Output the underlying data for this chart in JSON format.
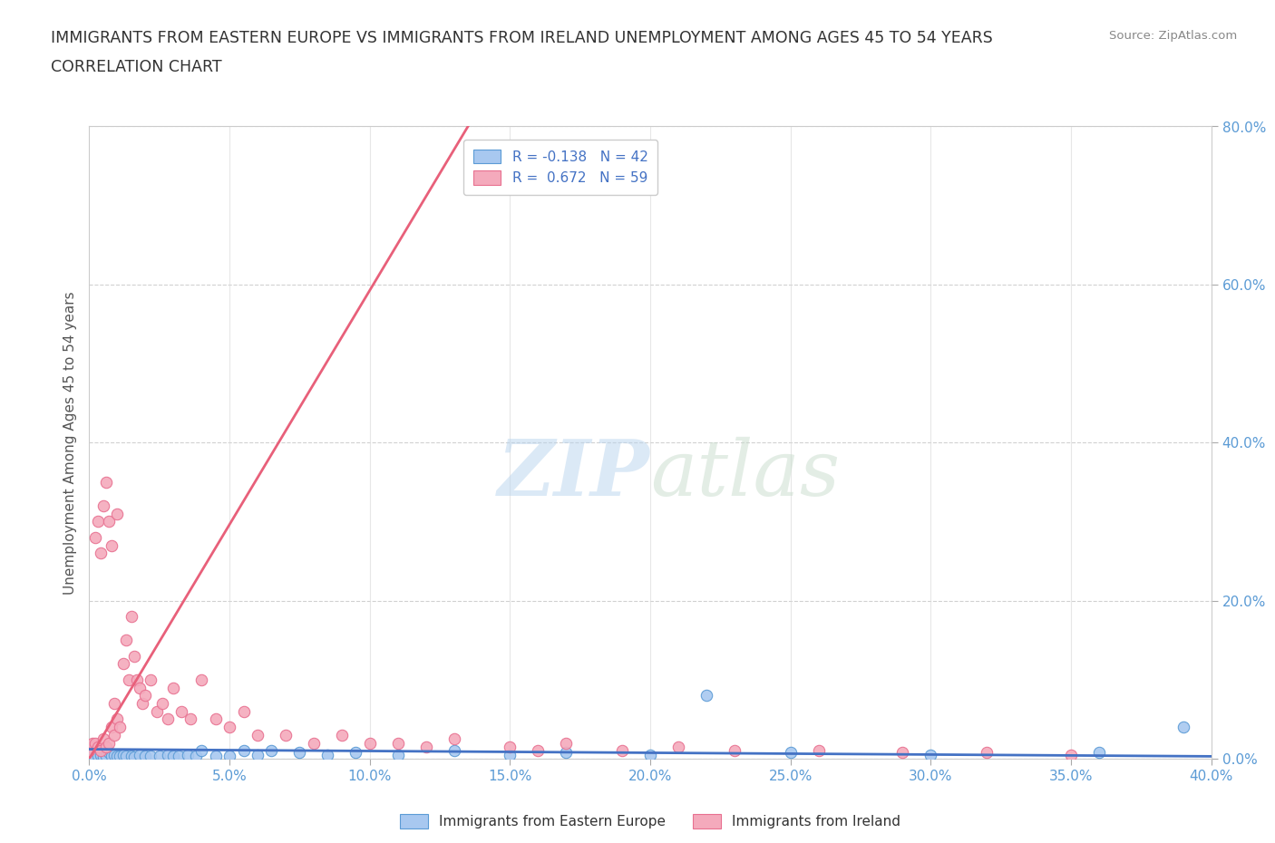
{
  "title_line1": "IMMIGRANTS FROM EASTERN EUROPE VS IMMIGRANTS FROM IRELAND UNEMPLOYMENT AMONG AGES 45 TO 54 YEARS",
  "title_line2": "CORRELATION CHART",
  "source": "Source: ZipAtlas.com",
  "xlim": [
    0.0,
    0.4
  ],
  "ylim": [
    0.0,
    0.8
  ],
  "legend_r1": "R = -0.138",
  "legend_n1": "N = 42",
  "legend_r2": "R =  0.672",
  "legend_n2": "N = 59",
  "color_blue_fill": "#A8C8F0",
  "color_blue_edge": "#5B9BD5",
  "color_pink_fill": "#F4AABC",
  "color_pink_edge": "#E87090",
  "color_trend_blue": "#4472C4",
  "color_trend_pink": "#E8607A",
  "watermark_zip": "ZIP",
  "watermark_atlas": "atlas",
  "ylabel": "Unemployment Among Ages 45 to 54 years",
  "blue_scatter_x": [
    0.001,
    0.003,
    0.004,
    0.005,
    0.006,
    0.007,
    0.008,
    0.009,
    0.01,
    0.011,
    0.012,
    0.013,
    0.015,
    0.016,
    0.018,
    0.02,
    0.022,
    0.025,
    0.028,
    0.03,
    0.032,
    0.035,
    0.038,
    0.04,
    0.045,
    0.05,
    0.055,
    0.06,
    0.065,
    0.075,
    0.085,
    0.095,
    0.11,
    0.13,
    0.15,
    0.17,
    0.2,
    0.22,
    0.25,
    0.3,
    0.36,
    0.39
  ],
  "blue_scatter_y": [
    0.005,
    0.003,
    0.005,
    0.002,
    0.004,
    0.008,
    0.003,
    0.005,
    0.004,
    0.003,
    0.005,
    0.003,
    0.004,
    0.002,
    0.005,
    0.003,
    0.004,
    0.003,
    0.005,
    0.004,
    0.003,
    0.005,
    0.003,
    0.01,
    0.004,
    0.003,
    0.01,
    0.005,
    0.01,
    0.008,
    0.005,
    0.008,
    0.005,
    0.01,
    0.005,
    0.008,
    0.005,
    0.08,
    0.008,
    0.005,
    0.008,
    0.04
  ],
  "pink_scatter_x": [
    0.0,
    0.001,
    0.002,
    0.002,
    0.003,
    0.003,
    0.004,
    0.004,
    0.005,
    0.005,
    0.006,
    0.006,
    0.007,
    0.007,
    0.008,
    0.008,
    0.009,
    0.009,
    0.01,
    0.01,
    0.011,
    0.012,
    0.013,
    0.014,
    0.015,
    0.016,
    0.017,
    0.018,
    0.019,
    0.02,
    0.022,
    0.024,
    0.026,
    0.028,
    0.03,
    0.033,
    0.036,
    0.04,
    0.045,
    0.05,
    0.055,
    0.06,
    0.07,
    0.08,
    0.09,
    0.1,
    0.11,
    0.12,
    0.13,
    0.15,
    0.16,
    0.17,
    0.19,
    0.21,
    0.23,
    0.26,
    0.29,
    0.32,
    0.35
  ],
  "pink_scatter_y": [
    0.01,
    0.02,
    0.28,
    0.02,
    0.3,
    0.015,
    0.26,
    0.01,
    0.32,
    0.025,
    0.35,
    0.015,
    0.3,
    0.02,
    0.04,
    0.27,
    0.07,
    0.03,
    0.31,
    0.05,
    0.04,
    0.12,
    0.15,
    0.1,
    0.18,
    0.13,
    0.1,
    0.09,
    0.07,
    0.08,
    0.1,
    0.06,
    0.07,
    0.05,
    0.09,
    0.06,
    0.05,
    0.1,
    0.05,
    0.04,
    0.06,
    0.03,
    0.03,
    0.02,
    0.03,
    0.02,
    0.02,
    0.015,
    0.025,
    0.015,
    0.01,
    0.02,
    0.01,
    0.015,
    0.01,
    0.01,
    0.008,
    0.008,
    0.005
  ],
  "blue_trend_x": [
    0.0,
    0.4
  ],
  "blue_trend_y": [
    0.012,
    0.003
  ],
  "pink_trend_x": [
    0.0,
    0.135
  ],
  "pink_trend_y": [
    0.0,
    0.8
  ]
}
